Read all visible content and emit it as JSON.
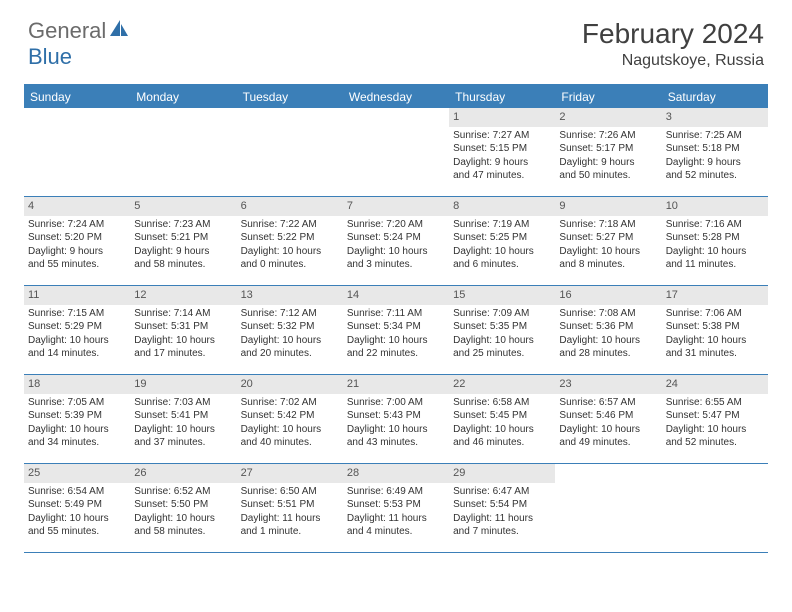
{
  "logo": {
    "text1": "General",
    "text2": "Blue"
  },
  "title": "February 2024",
  "location": "Nagutskoye, Russia",
  "colors": {
    "header_bg": "#3b7fb8",
    "header_text": "#ffffff",
    "daynum_bg": "#e8e8e8",
    "border": "#3b7fb8",
    "logo_gray": "#6b6b6b",
    "logo_blue": "#2f6fa8"
  },
  "day_names": [
    "Sunday",
    "Monday",
    "Tuesday",
    "Wednesday",
    "Thursday",
    "Friday",
    "Saturday"
  ],
  "weeks": [
    [
      null,
      null,
      null,
      null,
      {
        "n": "1",
        "sr": "Sunrise: 7:27 AM",
        "ss": "Sunset: 5:15 PM",
        "d1": "Daylight: 9 hours",
        "d2": "and 47 minutes."
      },
      {
        "n": "2",
        "sr": "Sunrise: 7:26 AM",
        "ss": "Sunset: 5:17 PM",
        "d1": "Daylight: 9 hours",
        "d2": "and 50 minutes."
      },
      {
        "n": "3",
        "sr": "Sunrise: 7:25 AM",
        "ss": "Sunset: 5:18 PM",
        "d1": "Daylight: 9 hours",
        "d2": "and 52 minutes."
      }
    ],
    [
      {
        "n": "4",
        "sr": "Sunrise: 7:24 AM",
        "ss": "Sunset: 5:20 PM",
        "d1": "Daylight: 9 hours",
        "d2": "and 55 minutes."
      },
      {
        "n": "5",
        "sr": "Sunrise: 7:23 AM",
        "ss": "Sunset: 5:21 PM",
        "d1": "Daylight: 9 hours",
        "d2": "and 58 minutes."
      },
      {
        "n": "6",
        "sr": "Sunrise: 7:22 AM",
        "ss": "Sunset: 5:22 PM",
        "d1": "Daylight: 10 hours",
        "d2": "and 0 minutes."
      },
      {
        "n": "7",
        "sr": "Sunrise: 7:20 AM",
        "ss": "Sunset: 5:24 PM",
        "d1": "Daylight: 10 hours",
        "d2": "and 3 minutes."
      },
      {
        "n": "8",
        "sr": "Sunrise: 7:19 AM",
        "ss": "Sunset: 5:25 PM",
        "d1": "Daylight: 10 hours",
        "d2": "and 6 minutes."
      },
      {
        "n": "9",
        "sr": "Sunrise: 7:18 AM",
        "ss": "Sunset: 5:27 PM",
        "d1": "Daylight: 10 hours",
        "d2": "and 8 minutes."
      },
      {
        "n": "10",
        "sr": "Sunrise: 7:16 AM",
        "ss": "Sunset: 5:28 PM",
        "d1": "Daylight: 10 hours",
        "d2": "and 11 minutes."
      }
    ],
    [
      {
        "n": "11",
        "sr": "Sunrise: 7:15 AM",
        "ss": "Sunset: 5:29 PM",
        "d1": "Daylight: 10 hours",
        "d2": "and 14 minutes."
      },
      {
        "n": "12",
        "sr": "Sunrise: 7:14 AM",
        "ss": "Sunset: 5:31 PM",
        "d1": "Daylight: 10 hours",
        "d2": "and 17 minutes."
      },
      {
        "n": "13",
        "sr": "Sunrise: 7:12 AM",
        "ss": "Sunset: 5:32 PM",
        "d1": "Daylight: 10 hours",
        "d2": "and 20 minutes."
      },
      {
        "n": "14",
        "sr": "Sunrise: 7:11 AM",
        "ss": "Sunset: 5:34 PM",
        "d1": "Daylight: 10 hours",
        "d2": "and 22 minutes."
      },
      {
        "n": "15",
        "sr": "Sunrise: 7:09 AM",
        "ss": "Sunset: 5:35 PM",
        "d1": "Daylight: 10 hours",
        "d2": "and 25 minutes."
      },
      {
        "n": "16",
        "sr": "Sunrise: 7:08 AM",
        "ss": "Sunset: 5:36 PM",
        "d1": "Daylight: 10 hours",
        "d2": "and 28 minutes."
      },
      {
        "n": "17",
        "sr": "Sunrise: 7:06 AM",
        "ss": "Sunset: 5:38 PM",
        "d1": "Daylight: 10 hours",
        "d2": "and 31 minutes."
      }
    ],
    [
      {
        "n": "18",
        "sr": "Sunrise: 7:05 AM",
        "ss": "Sunset: 5:39 PM",
        "d1": "Daylight: 10 hours",
        "d2": "and 34 minutes."
      },
      {
        "n": "19",
        "sr": "Sunrise: 7:03 AM",
        "ss": "Sunset: 5:41 PM",
        "d1": "Daylight: 10 hours",
        "d2": "and 37 minutes."
      },
      {
        "n": "20",
        "sr": "Sunrise: 7:02 AM",
        "ss": "Sunset: 5:42 PM",
        "d1": "Daylight: 10 hours",
        "d2": "and 40 minutes."
      },
      {
        "n": "21",
        "sr": "Sunrise: 7:00 AM",
        "ss": "Sunset: 5:43 PM",
        "d1": "Daylight: 10 hours",
        "d2": "and 43 minutes."
      },
      {
        "n": "22",
        "sr": "Sunrise: 6:58 AM",
        "ss": "Sunset: 5:45 PM",
        "d1": "Daylight: 10 hours",
        "d2": "and 46 minutes."
      },
      {
        "n": "23",
        "sr": "Sunrise: 6:57 AM",
        "ss": "Sunset: 5:46 PM",
        "d1": "Daylight: 10 hours",
        "d2": "and 49 minutes."
      },
      {
        "n": "24",
        "sr": "Sunrise: 6:55 AM",
        "ss": "Sunset: 5:47 PM",
        "d1": "Daylight: 10 hours",
        "d2": "and 52 minutes."
      }
    ],
    [
      {
        "n": "25",
        "sr": "Sunrise: 6:54 AM",
        "ss": "Sunset: 5:49 PM",
        "d1": "Daylight: 10 hours",
        "d2": "and 55 minutes."
      },
      {
        "n": "26",
        "sr": "Sunrise: 6:52 AM",
        "ss": "Sunset: 5:50 PM",
        "d1": "Daylight: 10 hours",
        "d2": "and 58 minutes."
      },
      {
        "n": "27",
        "sr": "Sunrise: 6:50 AM",
        "ss": "Sunset: 5:51 PM",
        "d1": "Daylight: 11 hours",
        "d2": "and 1 minute."
      },
      {
        "n": "28",
        "sr": "Sunrise: 6:49 AM",
        "ss": "Sunset: 5:53 PM",
        "d1": "Daylight: 11 hours",
        "d2": "and 4 minutes."
      },
      {
        "n": "29",
        "sr": "Sunrise: 6:47 AM",
        "ss": "Sunset: 5:54 PM",
        "d1": "Daylight: 11 hours",
        "d2": "and 7 minutes."
      },
      null,
      null
    ]
  ]
}
